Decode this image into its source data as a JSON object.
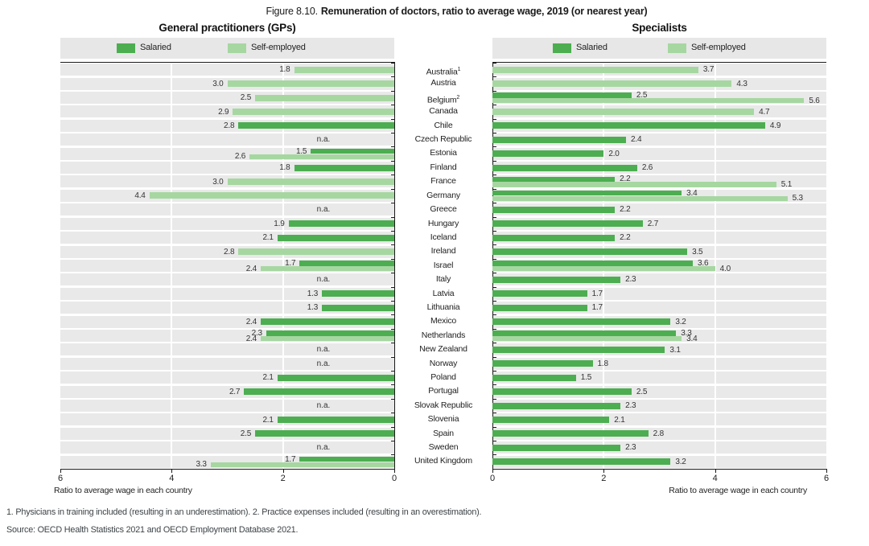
{
  "figure": {
    "label": "Figure 8.10.",
    "title": "Remuneration of doctors, ratio to average wage, 2019 (or nearest year)"
  },
  "legend": {
    "salaried": "Salaried",
    "self_employed": "Self-employed"
  },
  "na_text": "n.a.",
  "axis_caption": "Ratio to average wage in each country",
  "footnote": "1. Physicians in training included (resulting in an underestimation). 2. Practice expenses included (resulting in an overestimation).",
  "source": "Source: OECD Health Statistics 2021 and OECD Employment Database 2021.",
  "colors": {
    "salaried": "#4cae50",
    "self_employed": "#a6d7a1",
    "stripe": "#e9e9e9",
    "legend_bg": "#e7e7e7",
    "axis": "#1a1a1a"
  },
  "countries": [
    {
      "name": "Australia",
      "sup": "1"
    },
    {
      "name": "Austria"
    },
    {
      "name": "Belgium",
      "sup": "2"
    },
    {
      "name": "Canada"
    },
    {
      "name": "Chile"
    },
    {
      "name": "Czech Republic"
    },
    {
      "name": "Estonia"
    },
    {
      "name": "Finland"
    },
    {
      "name": "France"
    },
    {
      "name": "Germany"
    },
    {
      "name": "Greece"
    },
    {
      "name": "Hungary"
    },
    {
      "name": "Iceland"
    },
    {
      "name": "Ireland"
    },
    {
      "name": "Israel"
    },
    {
      "name": "Italy"
    },
    {
      "name": "Latvia"
    },
    {
      "name": "Lithuania"
    },
    {
      "name": "Mexico"
    },
    {
      "name": "Netherlands"
    },
    {
      "name": "New Zealand"
    },
    {
      "name": "Norway"
    },
    {
      "name": "Poland"
    },
    {
      "name": "Portugal"
    },
    {
      "name": "Slovak Republic"
    },
    {
      "name": "Slovenia"
    },
    {
      "name": "Spain"
    },
    {
      "name": "Sweden"
    },
    {
      "name": "United Kingdom"
    }
  ],
  "chart_data": [
    {
      "id": "gp",
      "type": "bar",
      "orientation": "horizontal",
      "axis_reversed": true,
      "title": "General practitioners (GPs)",
      "xlabel": "Ratio to average wage in each country",
      "xlim": [
        0,
        6
      ],
      "xticks": [
        6,
        4,
        2,
        0
      ],
      "grid": true,
      "legend_position": "top",
      "series": [
        {
          "name": "Salaried",
          "values": [
            null,
            null,
            null,
            null,
            2.8,
            null,
            1.5,
            1.8,
            null,
            null,
            null,
            1.9,
            2.1,
            null,
            1.7,
            null,
            1.3,
            1.3,
            2.4,
            2.3,
            null,
            null,
            2.1,
            2.7,
            null,
            2.1,
            2.5,
            null,
            1.7
          ]
        },
        {
          "name": "Self-employed",
          "values": [
            1.8,
            3.0,
            2.5,
            2.9,
            null,
            null,
            2.6,
            null,
            3.0,
            4.4,
            null,
            null,
            null,
            2.8,
            2.4,
            null,
            null,
            null,
            null,
            2.4,
            null,
            null,
            null,
            null,
            null,
            null,
            null,
            null,
            3.3
          ]
        }
      ]
    },
    {
      "id": "specialists",
      "type": "bar",
      "orientation": "horizontal",
      "axis_reversed": false,
      "title": "Specialists",
      "xlabel": "Ratio to average wage in each country",
      "xlim": [
        0,
        6
      ],
      "xticks": [
        0,
        2,
        4,
        6
      ],
      "grid": true,
      "legend_position": "top",
      "series": [
        {
          "name": "Salaried",
          "values": [
            null,
            null,
            2.5,
            null,
            4.9,
            2.4,
            2.0,
            2.6,
            2.2,
            3.4,
            2.2,
            2.7,
            2.2,
            3.5,
            3.6,
            2.3,
            1.7,
            1.7,
            3.2,
            3.3,
            3.1,
            1.8,
            1.5,
            2.5,
            2.3,
            2.1,
            2.8,
            2.3,
            3.2
          ]
        },
        {
          "name": "Self-employed",
          "values": [
            3.7,
            4.3,
            5.6,
            4.7,
            null,
            null,
            null,
            null,
            5.1,
            5.3,
            null,
            null,
            null,
            null,
            4.0,
            null,
            null,
            null,
            null,
            3.4,
            null,
            null,
            null,
            null,
            null,
            null,
            null,
            null,
            null
          ]
        }
      ]
    }
  ]
}
